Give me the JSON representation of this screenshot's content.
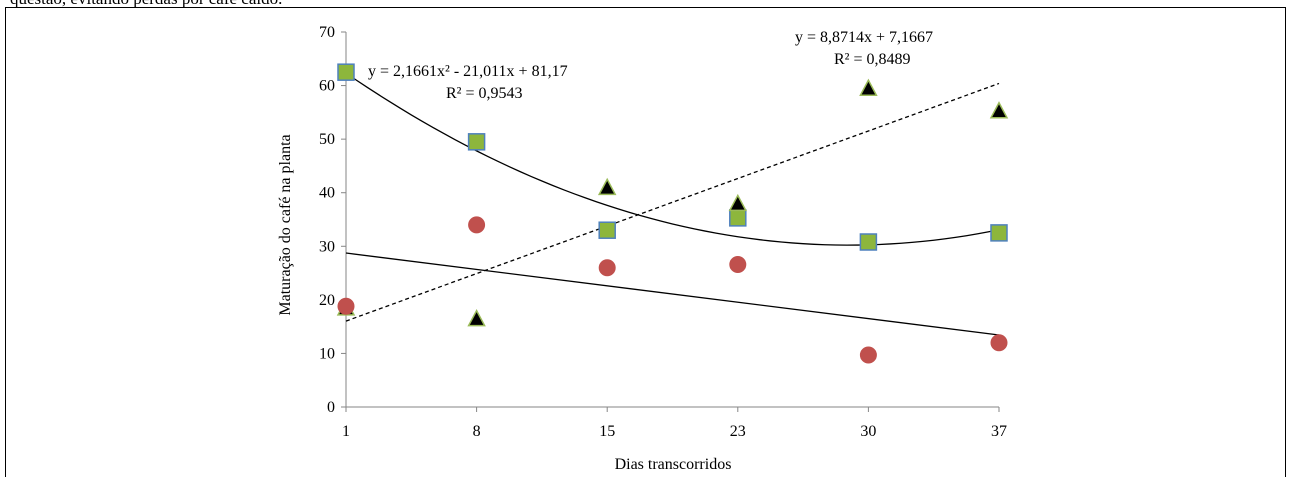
{
  "page": {
    "top_text": "questão, evitando perdas por café caído."
  },
  "chart_data": {
    "type": "scatter",
    "title": "",
    "xlabel": "Dias transcorridos",
    "ylabel": "Maturação do café na planta",
    "categories": [
      "1",
      "8",
      "15",
      "23",
      "30",
      "37"
    ],
    "ylim": [
      0,
      70
    ],
    "yticks": [
      0,
      10,
      20,
      30,
      40,
      50,
      60,
      70
    ],
    "grid": false,
    "legend": "none",
    "series": [
      {
        "marker": "square",
        "color": "#8db63c",
        "stroke": "#4f81bd",
        "values": [
          62.5,
          49.5,
          33,
          35.3,
          30.8,
          32.5
        ]
      },
      {
        "marker": "triangle",
        "color": "#000000",
        "stroke": "#9bbb59",
        "values": [
          18.5,
          16.5,
          41,
          38,
          59.5,
          55.3
        ]
      },
      {
        "marker": "circle",
        "color": "#c0504d",
        "stroke": "#c0504d",
        "values": [
          18.8,
          34,
          26,
          26.6,
          9.7,
          12
        ]
      }
    ],
    "trendlines": [
      {
        "kind": "polynomial",
        "coefficients": [
          2.1661,
          -21.011,
          81.17
        ],
        "style": "solid",
        "label_eq": "y = 2,1661x² - 21,011x + 81,17",
        "label_r2": "R² = 0,9543"
      },
      {
        "kind": "linear",
        "coefficients": [
          8.8714,
          7.1667
        ],
        "style": "dashed",
        "label_eq": "y = 8,8714x + 7,1667",
        "label_r2": "R² = 0,8489"
      },
      {
        "kind": "linear",
        "coefficients": [
          -3.06,
          31.8
        ],
        "style": "solid"
      }
    ]
  }
}
